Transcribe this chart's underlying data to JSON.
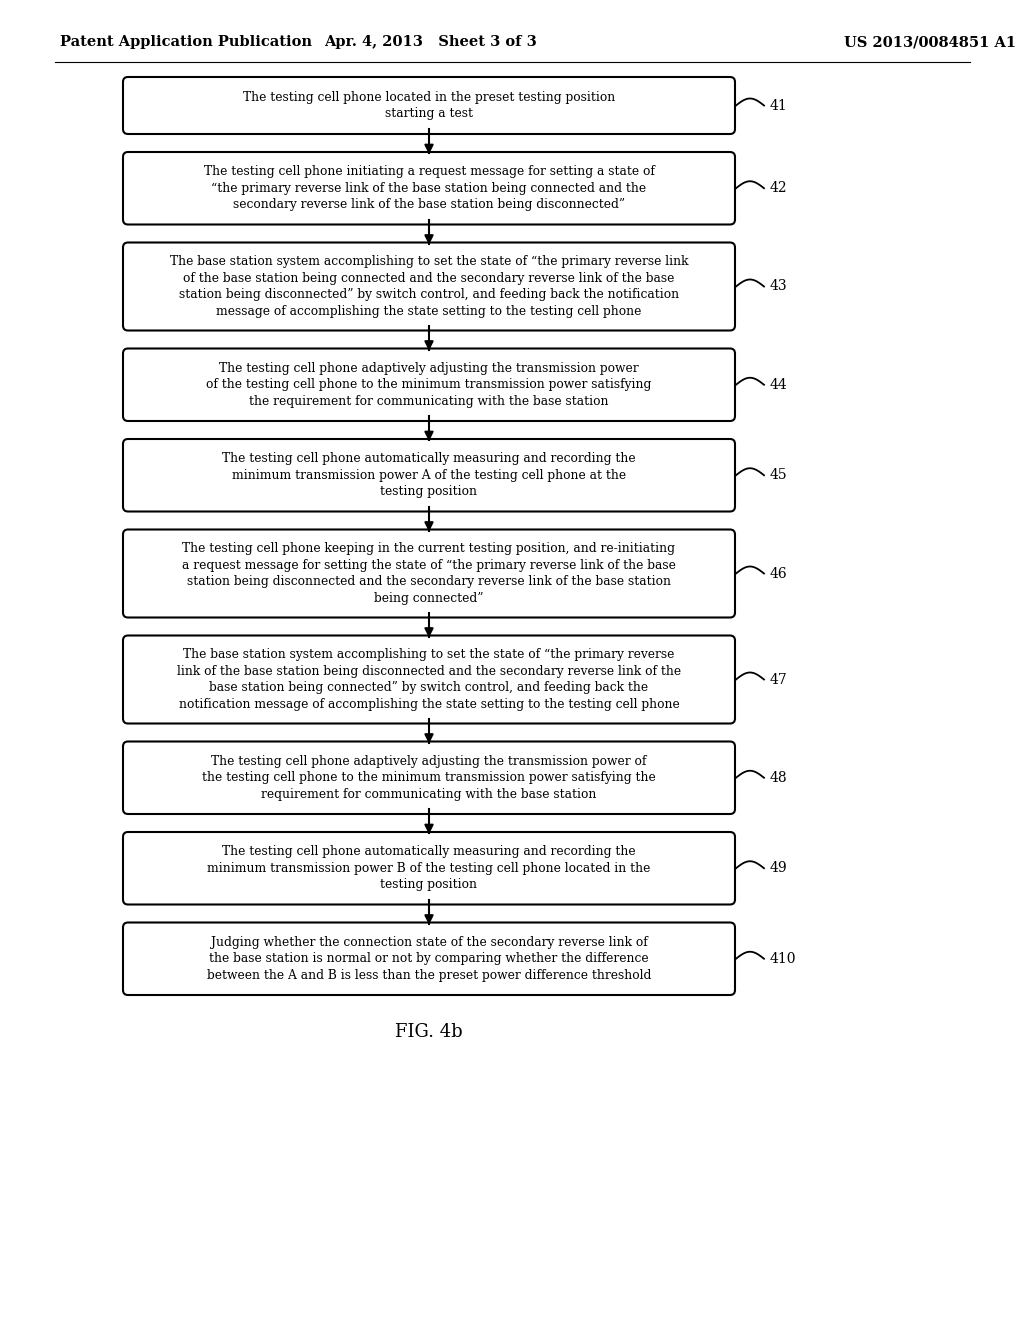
{
  "bg_color": "#ffffff",
  "header_left": "Patent Application Publication",
  "header_center": "Apr. 4, 2013   Sheet 3 of 3",
  "header_right": "US 2013/0084851 A1",
  "figure_label": "FIG. 4b",
  "boxes": [
    {
      "id": 41,
      "label": "41",
      "text": "The testing cell phone located in the preset testing position\nstarting a test",
      "lines": 2
    },
    {
      "id": 42,
      "label": "42",
      "text": "The testing cell phone initiating a request message for setting a state of\n“the primary reverse link of the base station being connected and the\nsecondary reverse link of the base station being disconnected”",
      "lines": 3
    },
    {
      "id": 43,
      "label": "43",
      "text": "The base station system accomplishing to set the state of “the primary reverse link\nof the base station being connected and the secondary reverse link of the base\nstation being disconnected” by switch control, and feeding back the notification\nmessage of accomplishing the state setting to the testing cell phone",
      "lines": 4
    },
    {
      "id": 44,
      "label": "44",
      "text": "The testing cell phone adaptively adjusting the transmission power\nof the testing cell phone to the minimum transmission power satisfying\nthe requirement for communicating with the base station",
      "lines": 3
    },
    {
      "id": 45,
      "label": "45",
      "text": "The testing cell phone automatically measuring and recording the\nminimum transmission power A of the testing cell phone at the\ntesting position",
      "lines": 3
    },
    {
      "id": 46,
      "label": "46",
      "text": "The testing cell phone keeping in the current testing position, and re-initiating\na request message for setting the state of “the primary reverse link of the base\nstation being disconnected and the secondary reverse link of the base station\nbeing connected”",
      "lines": 4
    },
    {
      "id": 47,
      "label": "47",
      "text": "The base station system accomplishing to set the state of “the primary reverse\nlink of the base station being disconnected and the secondary reverse link of the\nbase station being connected” by switch control, and feeding back the\nnotification message of accomplishing the state setting to the testing cell phone",
      "lines": 4
    },
    {
      "id": 48,
      "label": "48",
      "text": "The testing cell phone adaptively adjusting the transmission power of\nthe testing cell phone to the minimum transmission power satisfying the\nrequirement for communicating with the base station",
      "lines": 3
    },
    {
      "id": 49,
      "label": "49",
      "text": "The testing cell phone automatically measuring and recording the\nminimum transmission power B of the testing cell phone located in the\ntesting position",
      "lines": 3
    },
    {
      "id": 410,
      "label": "410",
      "text": "Judging whether the connection state of the secondary reverse link of\nthe base station is normal or not by comparing whether the difference\nbetween the A and B is less than the preset power difference threshold",
      "lines": 3
    }
  ]
}
